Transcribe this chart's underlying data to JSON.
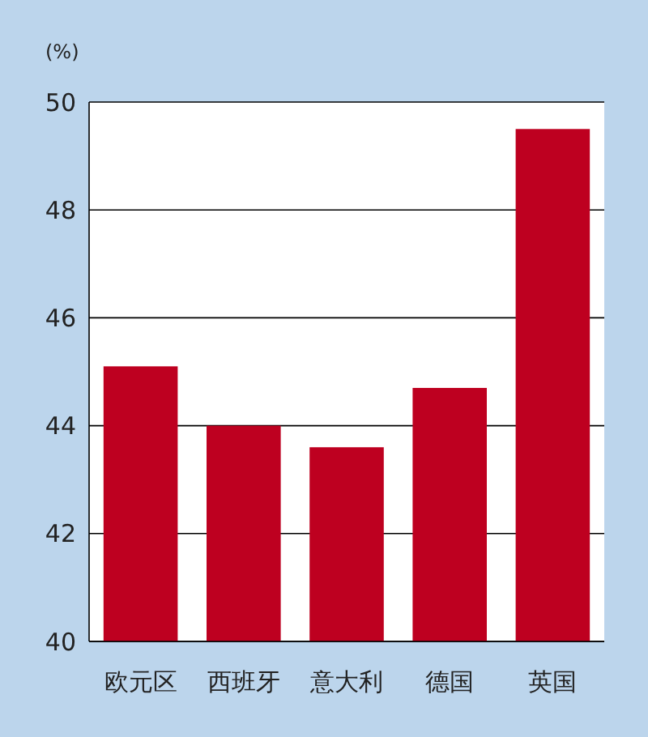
{
  "chart_data": {
    "type": "bar",
    "ylabel": "(%)",
    "categories": [
      "欧元区",
      "西班牙",
      "意大利",
      "德国",
      "英国"
    ],
    "values": [
      45.1,
      44.0,
      43.6,
      44.7,
      49.5
    ],
    "color": "#be0020",
    "ylim": [
      40,
      50
    ],
    "yticks": [
      40,
      42,
      44,
      46,
      48,
      50
    ],
    "grid": "y"
  }
}
